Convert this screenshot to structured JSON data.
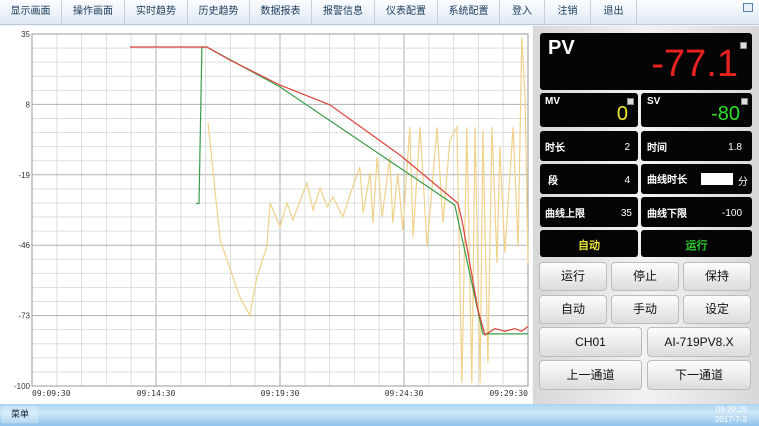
{
  "menu": [
    "显示画面",
    "操作画面",
    "实时趋势",
    "历史趋势",
    "数据报表",
    "报警信息",
    "仪表配置",
    "系统配置",
    "登入",
    "注销",
    "退出"
  ],
  "panel": {
    "pv": {
      "label": "PV",
      "value": "-77.1"
    },
    "mv": {
      "label": "MV",
      "value": "0"
    },
    "sv": {
      "label": "SV",
      "value": "-80"
    },
    "duration": {
      "label": "时长",
      "value": "2"
    },
    "time": {
      "label": "时间",
      "value": "1.8"
    },
    "segment": {
      "label": "段",
      "value": "4"
    },
    "curve_duration": {
      "label": "曲线时长",
      "value": "",
      "unit": "分"
    },
    "curve_upper": {
      "label": "曲线上限",
      "value": "35"
    },
    "curve_lower": {
      "label": "曲线下限",
      "value": "-100"
    },
    "mode_status": "自动",
    "run_status": "运行",
    "buttons": [
      "运行",
      "停止",
      "保持",
      "自动",
      "手动",
      "设定"
    ],
    "channel": "CH01",
    "model": "AI-719PV8.X",
    "prev_channel": "上一通道",
    "next_channel": "下一通道"
  },
  "taskbar": {
    "start": "菜单",
    "time": "09:29:29",
    "date": "2017-7-3"
  },
  "colors": {
    "pv": "#e8221e",
    "mv": "#f2e82a",
    "sv": "#2ee02e",
    "pv_line": "#d9443a",
    "sv_line": "#3a9c4a",
    "mv_line": "#f0d28a"
  },
  "chart_data": {
    "type": "line",
    "ylim": [
      -100,
      35
    ],
    "yticks": [
      35,
      8,
      -19,
      -46,
      -73,
      -100
    ],
    "xlim": [
      "09:09:30",
      "09:29:30"
    ],
    "xticks": [
      "09:09:30",
      "09:14:30",
      "09:19:30",
      "09:24:30",
      "09:29:30"
    ],
    "grid": true,
    "series": [
      {
        "key": "mv",
        "color": "#f0d28a",
        "points": [
          [
            "09:16:36",
            0.9
          ],
          [
            "09:17:05",
            -44
          ],
          [
            "09:17:36",
            -58.2
          ],
          [
            "09:17:53",
            -65.9
          ],
          [
            "09:18:17",
            -72.8
          ],
          [
            "09:18:34",
            -58.2
          ],
          [
            "09:18:58",
            -46.7
          ],
          [
            "09:19:06",
            -29.8
          ],
          [
            "09:19:30",
            -39
          ],
          [
            "09:19:47",
            -29.8
          ],
          [
            "09:20:01",
            -36.3
          ],
          [
            "09:20:35",
            -22.1
          ],
          [
            "09:20:50",
            -32.5
          ],
          [
            "09:21:07",
            -24.1
          ],
          [
            "09:21:24",
            -31.3
          ],
          [
            "09:21:38",
            -27.5
          ],
          [
            "09:22:02",
            -35.2
          ],
          [
            "09:22:26",
            -23.7
          ],
          [
            "09:22:43",
            -16
          ],
          [
            "09:22:51",
            -33.6
          ],
          [
            "09:23:08",
            -18.3
          ],
          [
            "09:23:15",
            -37.5
          ],
          [
            "09:23:25",
            -12.2
          ],
          [
            "09:23:37",
            -35.2
          ],
          [
            "09:23:56",
            -12.2
          ],
          [
            "09:24:03",
            -37.5
          ],
          [
            "09:24:15",
            -18.3
          ],
          [
            "09:24:27",
            -40.2
          ],
          [
            "09:24:44",
            -0.7
          ],
          [
            "09:24:52",
            -42.9
          ],
          [
            "09:25:09",
            -0.7
          ],
          [
            "09:25:26",
            -46.7
          ],
          [
            "09:25:50",
            -0.7
          ],
          [
            "09:26:04",
            -37.5
          ],
          [
            "09:26:21",
            -5.7
          ],
          [
            "09:26:38",
            -0.7
          ],
          [
            "09:26:50",
            -98.8
          ],
          [
            "09:27:02",
            -0.7
          ],
          [
            "09:27:14",
            -98.8
          ],
          [
            "09:27:22",
            -0.7
          ],
          [
            "09:27:34",
            -98.8
          ],
          [
            "09:27:41",
            -1.8
          ],
          [
            "09:27:53",
            -91.2
          ],
          [
            "09:28:03",
            -0.7
          ],
          [
            "09:28:15",
            -52.8
          ],
          [
            "09:28:22",
            -8.3
          ],
          [
            "09:28:34",
            -49
          ],
          [
            "09:28:54",
            -0.7
          ],
          [
            "09:29:06",
            -46.7
          ],
          [
            "09:29:15",
            33.8
          ],
          [
            "09:29:23",
            10.8
          ],
          [
            "09:29:30",
            -52.8
          ]
        ]
      },
      {
        "key": "sv",
        "color": "#3a9c4a",
        "points": [
          [
            "09:16:07",
            -30
          ],
          [
            "09:16:14",
            -30
          ],
          [
            "09:16:21",
            30
          ],
          [
            "09:16:33",
            30
          ],
          [
            "09:19:30",
            14.7
          ],
          [
            "09:26:33",
            -30.6
          ],
          [
            "09:27:41",
            -80
          ],
          [
            "09:29:30",
            -80
          ]
        ]
      },
      {
        "key": "pv",
        "color": "#d9443a",
        "points": [
          [
            "09:13:27",
            30
          ],
          [
            "09:16:33",
            30
          ],
          [
            "09:17:29",
            25
          ],
          [
            "09:19:30",
            15.4
          ],
          [
            "09:21:31",
            7.8
          ],
          [
            "09:24:20",
            -11.4
          ],
          [
            "09:26:40",
            -29.8
          ],
          [
            "09:26:50",
            -36.3
          ],
          [
            "09:27:10",
            -53.6
          ],
          [
            "09:27:29",
            -70.8
          ],
          [
            "09:27:46",
            -80.4
          ],
          [
            "09:28:10",
            -78
          ],
          [
            "09:28:34",
            -79
          ],
          [
            "09:28:58",
            -78
          ],
          [
            "09:29:15",
            -79
          ],
          [
            "09:29:30",
            -77.1
          ]
        ]
      }
    ]
  }
}
